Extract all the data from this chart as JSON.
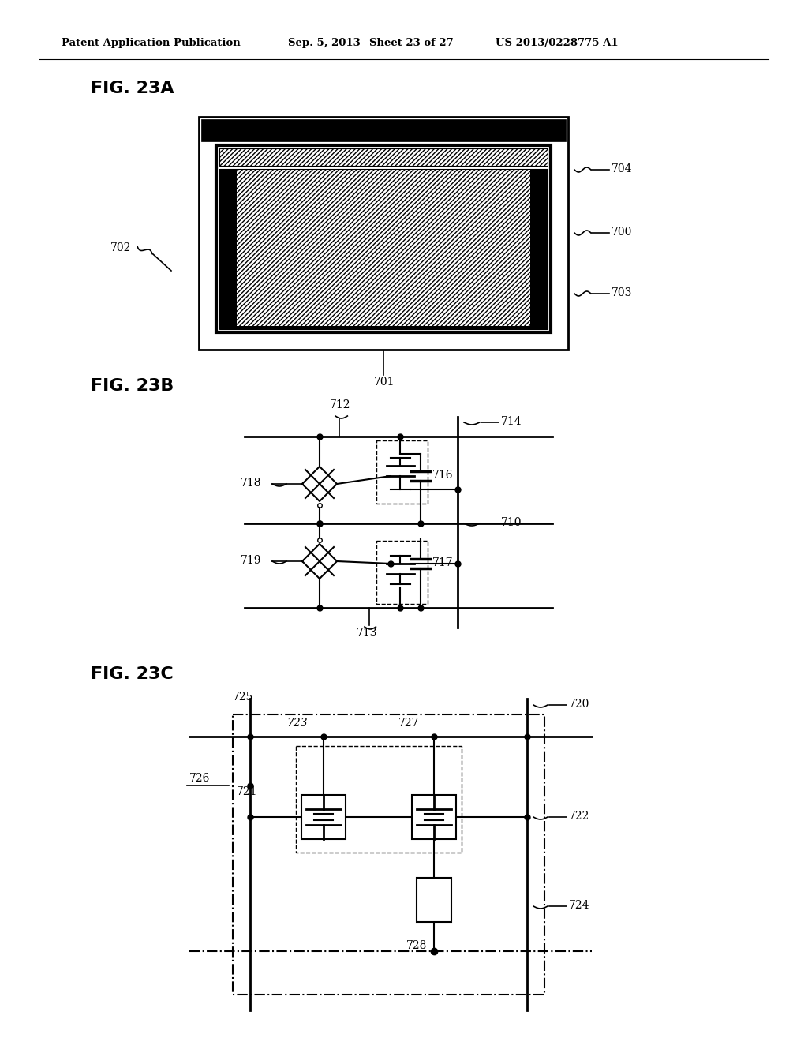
{
  "title_header": "Patent Application Publication",
  "date_header": "Sep. 5, 2013",
  "sheet_header": "Sheet 23 of 27",
  "patent_header": "US 2013/0228775 A1",
  "fig23a_label": "FIG. 23A",
  "fig23b_label": "FIG. 23B",
  "fig23c_label": "FIG. 23C",
  "bg_color": "#ffffff",
  "line_color": "#000000"
}
